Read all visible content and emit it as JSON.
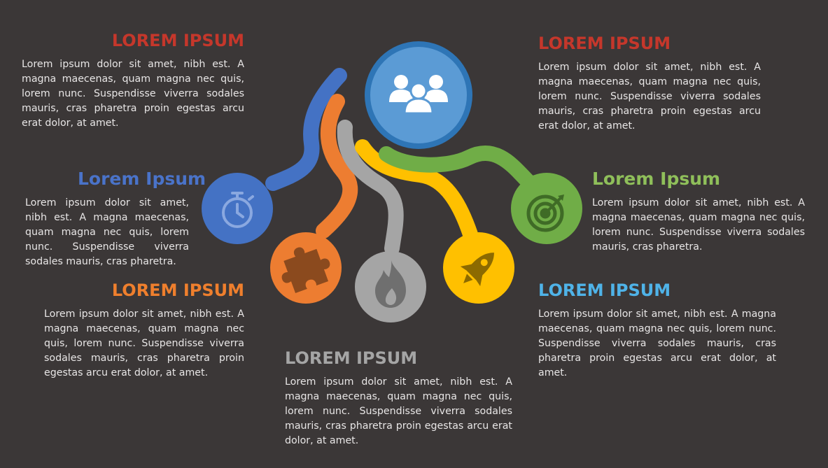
{
  "colors": {
    "background": "#3b3737",
    "red": "#c5372b",
    "blue_dark": "#4a73c9",
    "orange": "#ef7f2d",
    "gray": "#999999",
    "yellow": "#ffc000",
    "green": "#70ad47",
    "light_blue": "#5b9bd5",
    "sky": "#4fb3e8",
    "text": "#e8e6e6"
  },
  "hub": {
    "icon": "team-people-icon"
  },
  "nodes": [
    {
      "id": "stopwatch",
      "icon": "stopwatch-icon",
      "color": "#4472c4"
    },
    {
      "id": "puzzle",
      "icon": "puzzle-piece-icon",
      "color": "#ed7d31"
    },
    {
      "id": "fire",
      "icon": "flame-icon",
      "color": "#a5a5a5"
    },
    {
      "id": "rocket",
      "icon": "rocket-icon",
      "color": "#ffc000"
    },
    {
      "id": "target",
      "icon": "target-icon",
      "color": "#70ad47"
    }
  ],
  "blocks": {
    "top_left": {
      "title": "LOREM IPSUM",
      "text": "Lorem ipsum dolor sit amet, nibh est. A magna maecenas, quam magna nec quis, lorem nunc. Suspendisse viverra sodales mauris, cras pharetra proin egestas arcu erat dolor, at amet."
    },
    "mid_left": {
      "title": "Lorem Ipsum",
      "text": "Lorem ipsum dolor sit amet, nibh est. A magna maecenas, quam magna nec quis, lorem nunc. Suspendisse viverra sodales mauris, cras pharetra."
    },
    "bottom_left": {
      "title": "LOREM IPSUM",
      "text": "Lorem ipsum dolor sit amet, nibh est. A magna maecenas, quam magna nec quis, lorem nunc. Suspendisse viverra sodales mauris, cras pharetra proin egestas arcu erat dolor, at amet."
    },
    "bottom_center": {
      "title": "LOREM IPSUM",
      "text": "Lorem ipsum dolor sit amet, nibh est. A magna maecenas, quam magna nec quis, lorem nunc. Suspendisse viverra sodales mauris, cras pharetra proin egestas arcu erat dolor, at amet."
    },
    "top_right": {
      "title": "LOREM IPSUM",
      "text": "Lorem ipsum dolor sit amet, nibh est. A magna maecenas, quam magna nec quis, lorem nunc. Suspendisse viverra sodales mauris, cras pharetra proin egestas arcu erat dolor, at amet."
    },
    "mid_right": {
      "title": "Lorem Ipsum",
      "text": "Lorem ipsum dolor sit amet, nibh est. A magna maecenas, quam magna nec quis, lorem nunc. Suspendisse viverra sodales mauris, cras pharetra."
    },
    "bottom_right": {
      "title": "LOREM IPSUM",
      "text": "Lorem ipsum dolor sit amet, nibh est. A magna maecenas, quam magna nec quis, lorem nunc. Suspendisse viverra sodales mauris, cras pharetra proin egestas arcu erat dolor, at amet."
    }
  }
}
